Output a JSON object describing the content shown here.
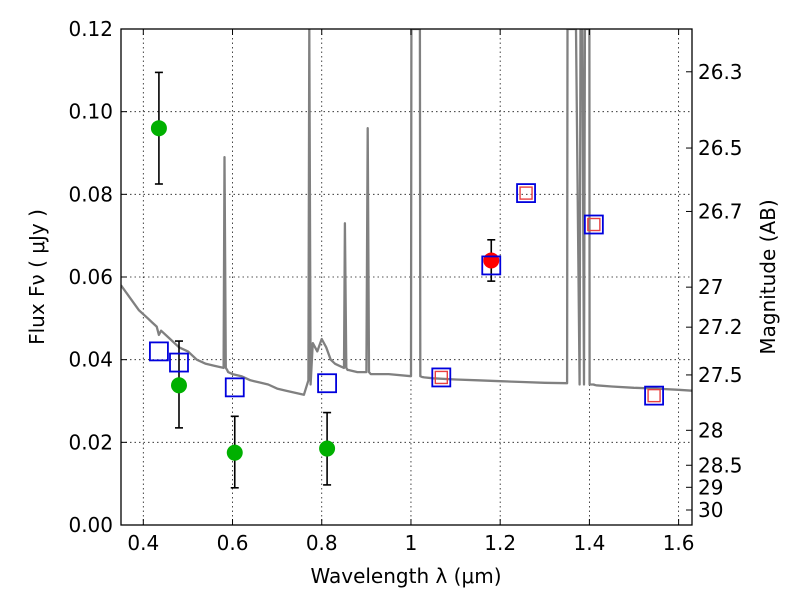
{
  "chart_data": {
    "type": "scatter",
    "title": "",
    "xlabel": "Wavelength  λ (μm)",
    "ylabel": "Flux  Fν  ( μJy )",
    "y2label": "Magnitude (AB)",
    "xlim": [
      0.35,
      1.63
    ],
    "ylim": [
      0.0,
      0.12
    ],
    "grid": true,
    "x_ticks": [
      0.4,
      0.6,
      0.8,
      1.0,
      1.2,
      1.4,
      1.6
    ],
    "x_tick_labels": [
      "0.4",
      "0.6",
      "0.8",
      "1",
      "1.2",
      "1.4",
      "1.6"
    ],
    "y_ticks": [
      0.0,
      0.02,
      0.04,
      0.06,
      0.08,
      0.1,
      0.12
    ],
    "y_tick_labels": [
      "0.00",
      "0.02",
      "0.04",
      "0.06",
      "0.08",
      "0.10",
      "0.12"
    ],
    "y2_ticks": [
      26.3,
      26.5,
      26.7,
      27,
      27.2,
      27.5,
      28,
      28.5,
      29,
      30
    ],
    "y2_tick_labels": [
      "26.3",
      "26.5",
      "26.7",
      "27",
      "27.2",
      "27.5",
      "28",
      "28.5",
      "29",
      "30"
    ],
    "series": [
      {
        "kind": "line",
        "color": "#808080",
        "x": [
          0.35,
          0.37,
          0.39,
          0.41,
          0.42,
          0.43,
          0.435,
          0.44,
          0.46,
          0.48,
          0.5,
          0.52,
          0.54,
          0.56,
          0.58,
          0.582,
          0.585,
          0.588,
          0.59,
          0.6,
          0.62,
          0.64,
          0.66,
          0.68,
          0.7,
          0.72,
          0.74,
          0.76,
          0.77,
          0.772,
          0.775,
          0.778,
          0.78,
          0.79,
          0.8,
          0.81,
          0.82,
          0.83,
          0.84,
          0.85,
          0.852,
          0.855,
          0.858,
          0.86,
          0.88,
          0.9,
          0.903,
          0.906,
          0.91,
          0.95,
          1.0,
          1.001,
          1.02,
          1.021,
          1.025,
          1.03,
          1.05,
          1.1,
          1.15,
          1.2,
          1.25,
          1.3,
          1.35,
          1.351,
          1.37,
          1.378,
          1.38,
          1.384,
          1.388,
          1.39,
          1.392,
          1.4,
          1.4005,
          1.41,
          1.411,
          1.415,
          1.45,
          1.5,
          1.55,
          1.6,
          1.63
        ],
        "y": [
          0.058,
          0.055,
          0.052,
          0.05,
          0.049,
          0.048,
          0.046,
          0.047,
          0.045,
          0.043,
          0.042,
          0.04,
          0.039,
          0.0385,
          0.038,
          0.089,
          0.038,
          0.0375,
          0.037,
          0.0365,
          0.036,
          0.035,
          0.0345,
          0.034,
          0.033,
          0.0325,
          0.032,
          0.0315,
          0.035,
          0.12,
          0.034,
          0.04,
          0.044,
          0.042,
          0.045,
          0.043,
          0.04,
          0.039,
          0.0385,
          0.038,
          0.073,
          0.038,
          0.0375,
          0.0375,
          0.037,
          0.037,
          0.096,
          0.037,
          0.0365,
          0.0365,
          0.036,
          0.12,
          0.12,
          0.036,
          0.0358,
          0.0357,
          0.0355,
          0.0352,
          0.035,
          0.0348,
          0.0346,
          0.0344,
          0.0343,
          0.12,
          0.12,
          0.034,
          0.12,
          0.12,
          0.034,
          0.12,
          0.12,
          0.12,
          0.034,
          0.034,
          0.0339,
          0.0338,
          0.0335,
          0.0332,
          0.033,
          0.0327,
          0.0325
        ]
      },
      {
        "kind": "scatter-errorbar",
        "color": "#00b000",
        "marker": "circle",
        "x": [
          0.435,
          0.48,
          0.605,
          0.812
        ],
        "y": [
          0.096,
          0.0338,
          0.0175,
          0.0185
        ],
        "yerr_low": [
          0.0825,
          0.0235,
          0.009,
          0.0097
        ],
        "yerr_high": [
          0.1095,
          0.0445,
          0.0263,
          0.0272
        ]
      },
      {
        "kind": "scatter-errorbar",
        "color": "#ff0000",
        "marker": "circle",
        "x": [
          1.18
        ],
        "y": [
          0.064
        ],
        "yerr_low": [
          0.059
        ],
        "yerr_high": [
          0.069
        ]
      },
      {
        "kind": "scatter",
        "color": "#0000dd",
        "marker": "open-square",
        "x": [
          0.435,
          0.48,
          0.605,
          0.812,
          1.068,
          1.18,
          1.258,
          1.41,
          1.545
        ],
        "y": [
          0.042,
          0.0393,
          0.0333,
          0.0343,
          0.0357,
          0.0628,
          0.0803,
          0.0727,
          0.0313
        ]
      },
      {
        "kind": "scatter",
        "color": "#e84040",
        "marker": "open-square-small",
        "x": [
          1.068,
          1.258,
          1.41,
          1.545
        ],
        "y": [
          0.0357,
          0.0803,
          0.0727,
          0.0313
        ]
      }
    ]
  }
}
